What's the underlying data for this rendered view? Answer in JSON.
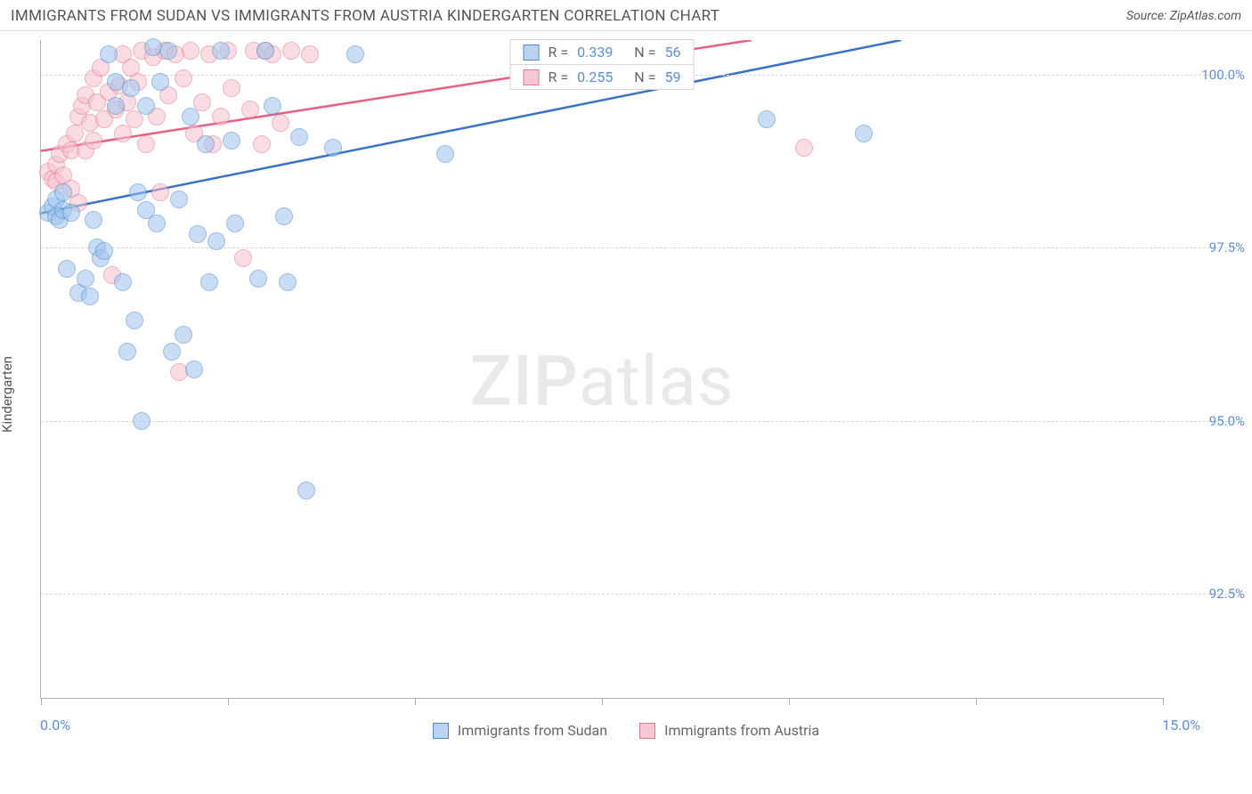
{
  "header": {
    "title": "IMMIGRANTS FROM SUDAN VS IMMIGRANTS FROM AUSTRIA KINDERGARTEN CORRELATION CHART",
    "source_label": "Source: ",
    "source_name": "ZipAtlas.com"
  },
  "axes": {
    "ylabel": "Kindergarten",
    "xmin": 0.0,
    "xmax": 15.0,
    "ymin": 91.0,
    "ymax": 100.5,
    "xtick_label_min": "0.0%",
    "xtick_label_max": "15.0%",
    "xticks": [
      0.0,
      2.5,
      5.0,
      7.5,
      10.0,
      12.5,
      15.0
    ],
    "yticks": [
      {
        "v": 92.5,
        "label": "92.5%"
      },
      {
        "v": 95.0,
        "label": "95.0%"
      },
      {
        "v": 97.5,
        "label": "97.5%"
      },
      {
        "v": 100.0,
        "label": "100.0%"
      }
    ]
  },
  "watermark": {
    "left": "ZIP",
    "right": "atlas"
  },
  "colors": {
    "blue_fill": "#9ec4ee",
    "blue_stroke": "#4f86cf",
    "blue_line": "#3a72c8",
    "pink_fill": "#f6c2cc",
    "pink_stroke": "#e37690",
    "pink_line": "#e85f82",
    "grid": "#d8d8d8",
    "tick_text": "#5c8ed6"
  },
  "stats": [
    {
      "color": "blue",
      "r_label": "R =",
      "r": "0.339",
      "n_label": "N =",
      "n": "56"
    },
    {
      "color": "pink",
      "r_label": "R =",
      "r": "0.255",
      "n_label": "N =",
      "n": "59"
    }
  ],
  "legend": [
    {
      "color": "blue",
      "label": "Immigrants from Sudan"
    },
    {
      "color": "pink",
      "label": "Immigrants from Austria"
    }
  ],
  "trend_lines": {
    "blue": {
      "x1": 0.0,
      "y1": 98.0,
      "x2": 11.5,
      "y2": 100.5
    },
    "pink": {
      "x1": 0.0,
      "y1": 98.9,
      "x2": 9.5,
      "y2": 100.5
    }
  },
  "series": {
    "blue": [
      [
        0.1,
        98.0
      ],
      [
        0.15,
        98.1
      ],
      [
        0.2,
        97.95
      ],
      [
        0.2,
        98.2
      ],
      [
        0.25,
        97.9
      ],
      [
        0.3,
        98.05
      ],
      [
        0.3,
        98.3
      ],
      [
        0.4,
        98.0
      ],
      [
        0.35,
        97.2
      ],
      [
        0.5,
        96.85
      ],
      [
        0.6,
        97.05
      ],
      [
        0.65,
        96.8
      ],
      [
        0.7,
        97.9
      ],
      [
        0.75,
        97.5
      ],
      [
        0.8,
        97.35
      ],
      [
        0.85,
        97.45
      ],
      [
        0.9,
        100.3
      ],
      [
        1.0,
        99.55
      ],
      [
        1.0,
        99.9
      ],
      [
        1.1,
        97.0
      ],
      [
        1.15,
        96.0
      ],
      [
        1.2,
        99.8
      ],
      [
        1.3,
        98.3
      ],
      [
        1.25,
        96.45
      ],
      [
        1.35,
        95.0
      ],
      [
        1.4,
        99.55
      ],
      [
        1.4,
        98.05
      ],
      [
        1.5,
        100.4
      ],
      [
        1.55,
        97.85
      ],
      [
        1.6,
        99.9
      ],
      [
        1.7,
        100.35
      ],
      [
        1.75,
        96.0
      ],
      [
        1.85,
        98.2
      ],
      [
        1.9,
        96.25
      ],
      [
        2.0,
        99.4
      ],
      [
        2.05,
        95.75
      ],
      [
        2.1,
        97.7
      ],
      [
        2.2,
        99.0
      ],
      [
        2.25,
        97.0
      ],
      [
        2.35,
        97.6
      ],
      [
        2.4,
        100.35
      ],
      [
        2.55,
        99.05
      ],
      [
        2.6,
        97.85
      ],
      [
        2.9,
        97.05
      ],
      [
        3.0,
        100.35
      ],
      [
        3.1,
        99.55
      ],
      [
        3.25,
        97.95
      ],
      [
        3.3,
        97.0
      ],
      [
        3.45,
        99.1
      ],
      [
        3.55,
        94.0
      ],
      [
        3.9,
        98.95
      ],
      [
        4.2,
        100.3
      ],
      [
        5.4,
        98.85
      ],
      [
        7.05,
        100.35
      ],
      [
        9.7,
        99.35
      ],
      [
        11.0,
        99.15
      ]
    ],
    "pink": [
      [
        0.1,
        98.6
      ],
      [
        0.15,
        98.5
      ],
      [
        0.2,
        98.7
      ],
      [
        0.2,
        98.45
      ],
      [
        0.25,
        98.85
      ],
      [
        0.3,
        98.55
      ],
      [
        0.35,
        99.0
      ],
      [
        0.4,
        98.35
      ],
      [
        0.4,
        98.9
      ],
      [
        0.45,
        99.15
      ],
      [
        0.5,
        99.4
      ],
      [
        0.5,
        98.15
      ],
      [
        0.55,
        99.55
      ],
      [
        0.6,
        98.9
      ],
      [
        0.6,
        99.7
      ],
      [
        0.65,
        99.3
      ],
      [
        0.7,
        99.95
      ],
      [
        0.7,
        99.05
      ],
      [
        0.75,
        99.6
      ],
      [
        0.8,
        100.1
      ],
      [
        0.85,
        99.35
      ],
      [
        0.9,
        99.75
      ],
      [
        0.95,
        97.1
      ],
      [
        1.0,
        99.5
      ],
      [
        1.05,
        99.85
      ],
      [
        1.1,
        99.15
      ],
      [
        1.1,
        100.3
      ],
      [
        1.15,
        99.6
      ],
      [
        1.2,
        100.1
      ],
      [
        1.25,
        99.35
      ],
      [
        1.3,
        99.9
      ],
      [
        1.35,
        100.35
      ],
      [
        1.4,
        99.0
      ],
      [
        1.5,
        100.25
      ],
      [
        1.55,
        99.4
      ],
      [
        1.6,
        98.3
      ],
      [
        1.65,
        100.35
      ],
      [
        1.7,
        99.7
      ],
      [
        1.8,
        100.3
      ],
      [
        1.85,
        95.7
      ],
      [
        1.9,
        99.95
      ],
      [
        2.0,
        100.35
      ],
      [
        2.05,
        99.15
      ],
      [
        2.15,
        99.6
      ],
      [
        2.25,
        100.3
      ],
      [
        2.3,
        99.0
      ],
      [
        2.4,
        99.4
      ],
      [
        2.5,
        100.35
      ],
      [
        2.55,
        99.8
      ],
      [
        2.7,
        97.35
      ],
      [
        2.8,
        99.5
      ],
      [
        2.85,
        100.35
      ],
      [
        2.95,
        99.0
      ],
      [
        3.0,
        100.35
      ],
      [
        3.1,
        100.3
      ],
      [
        3.2,
        99.3
      ],
      [
        3.35,
        100.35
      ],
      [
        3.6,
        100.3
      ],
      [
        10.2,
        98.95
      ]
    ]
  }
}
